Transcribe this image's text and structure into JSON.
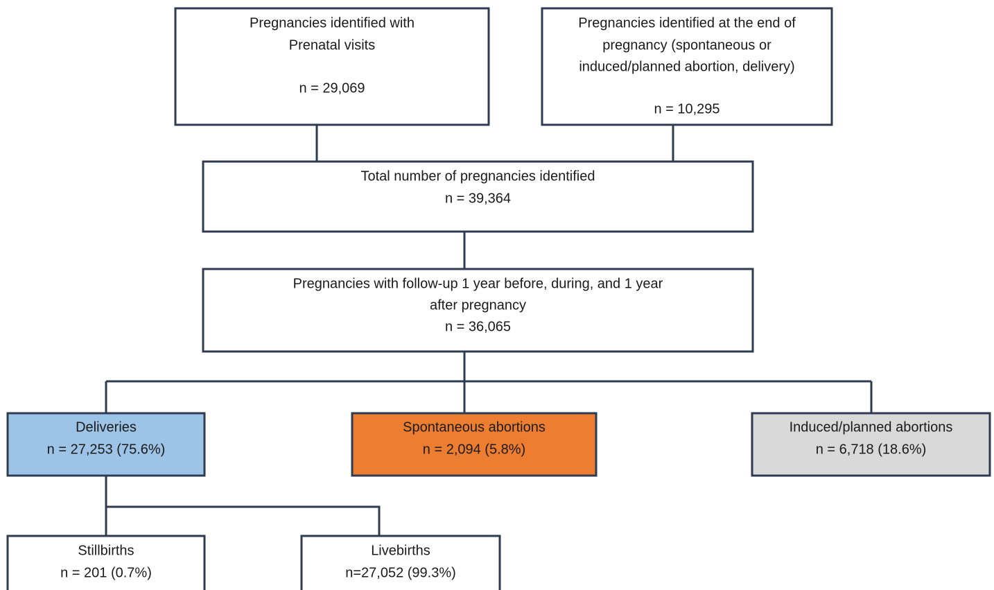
{
  "nodes": [
    {
      "lines": [
        "Pregnancies identified with",
        "Prenatal visits",
        "n = 29,069"
      ]
    },
    {
      "lines": [
        "Pregnancies identified at the end of",
        "pregnancy (spontaneous or",
        "induced/planned abortion, delivery)",
        "n = 10,295"
      ]
    },
    {
      "lines": [
        "Total number of pregnancies identified",
        "n = 39,364"
      ]
    },
    {
      "lines": [
        "Pregnancies with follow-up 1 year before, during, and 1 year",
        "after pregnancy",
        "n = 36,065"
      ]
    },
    {
      "lines": [
        "Deliveries",
        "n = 27,253 (75.6%)"
      ]
    },
    {
      "lines": [
        "Spontaneous abortions",
        "n = 2,094 (5.8%)"
      ]
    },
    {
      "lines": [
        "Induced/planned abortions",
        "n = 6,718 (18.6%)"
      ]
    },
    {
      "lines": [
        "Stillbirths",
        "n = 201 (0.7%)"
      ]
    },
    {
      "lines": [
        "Livebirths",
        "n=27,052 (99.3%)"
      ]
    }
  ]
}
